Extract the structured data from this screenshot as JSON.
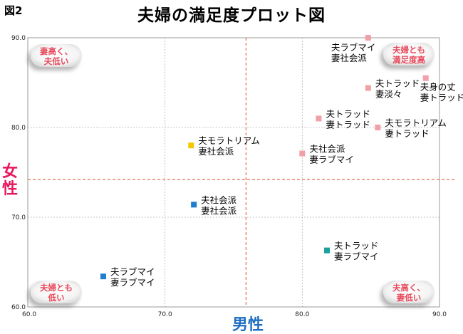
{
  "figure_label": "図2",
  "chart_data": {
    "type": "scatter",
    "title": "夫婦の満足度プロット図",
    "xlabel": "男性",
    "ylabel": "女性",
    "xlim": [
      60,
      90
    ],
    "ylim": [
      60,
      90
    ],
    "x_ticks": [
      "60.0",
      "70.0",
      "80.0",
      "90.0"
    ],
    "y_ticks": [
      "60.0",
      "70.0",
      "80.0",
      "90.0"
    ],
    "grid": true,
    "reference_lines": {
      "x": 75.9,
      "y": 74.2
    },
    "points": [
      {
        "x": 84.8,
        "y": 90.0,
        "label": [
          "夫ラブマイ",
          "妻社会派"
        ],
        "color": "#f0a0a8"
      },
      {
        "x": 84.8,
        "y": 84.4,
        "label": [
          "夫トラッド",
          "妻淡々"
        ],
        "color": "#f0a0a8"
      },
      {
        "x": 89.0,
        "y": 85.5,
        "label": [
          "夫身の丈",
          "妻トラッド"
        ],
        "color": "#f0a0a8"
      },
      {
        "x": 81.2,
        "y": 81.0,
        "label": [
          "夫トラッド",
          "妻トラッド"
        ],
        "color": "#f0a0a8"
      },
      {
        "x": 85.5,
        "y": 80.0,
        "label": [
          "夫モラトリアム",
          "妻トラッド"
        ],
        "color": "#f0a0a8"
      },
      {
        "x": 80.0,
        "y": 77.1,
        "label": [
          "夫社会派",
          "妻ラブマイ"
        ],
        "color": "#f0a0a8"
      },
      {
        "x": 71.9,
        "y": 78.0,
        "label": [
          "夫モラトリアム",
          "妻社会派"
        ],
        "color": "#f5c800"
      },
      {
        "x": 72.1,
        "y": 71.4,
        "label": [
          "夫社会派",
          "妻社会派"
        ],
        "color": "#1e7fd0"
      },
      {
        "x": 81.8,
        "y": 66.3,
        "label": [
          "夫トラッド",
          "妻ラブマイ"
        ],
        "color": "#1a9e9e"
      },
      {
        "x": 65.5,
        "y": 63.4,
        "label": [
          "夫ラブマイ",
          "妻ラブマイ"
        ],
        "color": "#1e7fd0"
      }
    ],
    "quadrant_labels": {
      "top_left": [
        "妻高く、",
        "夫低い"
      ],
      "top_right": [
        "夫婦とも",
        "満足度高"
      ],
      "bottom_left": [
        "夫婦とも",
        "低い"
      ],
      "bottom_right": [
        "夫高く、",
        "妻低い"
      ]
    }
  }
}
